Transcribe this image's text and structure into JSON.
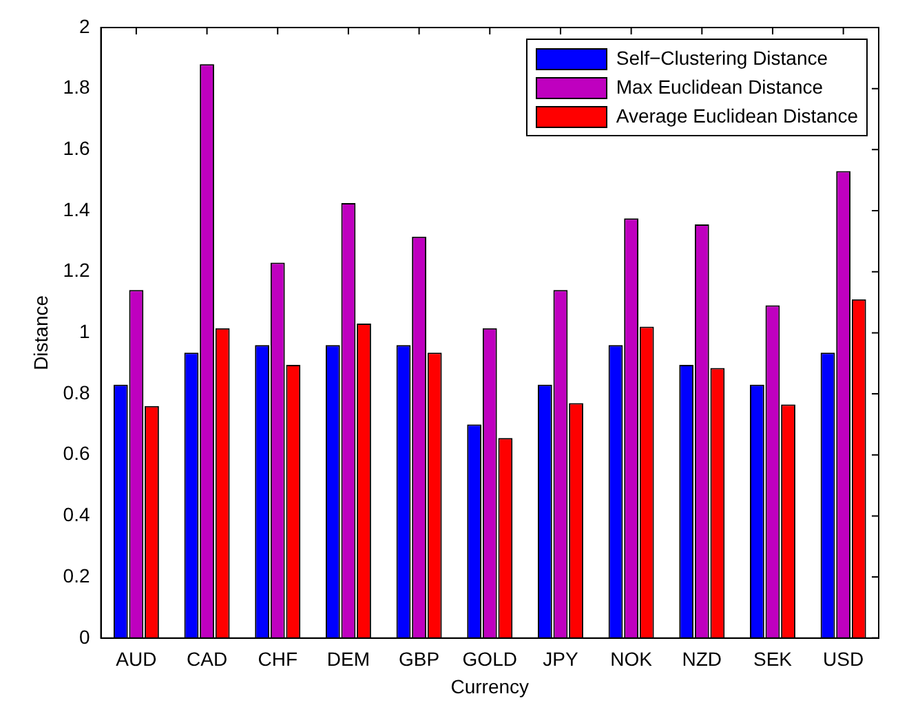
{
  "chart_data": {
    "type": "bar",
    "xlabel": "Currency",
    "ylabel": "Distance",
    "categories": [
      "AUD",
      "CAD",
      "CHF",
      "DEM",
      "GBP",
      "GOLD",
      "JPY",
      "NOK",
      "NZD",
      "SEK",
      "USD"
    ],
    "series": [
      {
        "name": "Self−Clustering Distance",
        "color": "#0000ff",
        "values": [
          0.83,
          0.935,
          0.96,
          0.96,
          0.96,
          0.7,
          0.83,
          0.96,
          0.895,
          0.83,
          0.935
        ]
      },
      {
        "name": "Max Euclidean Distance",
        "color": "#bf00bf",
        "values": [
          1.14,
          1.88,
          1.23,
          1.425,
          1.315,
          1.015,
          1.14,
          1.375,
          1.355,
          1.09,
          1.53
        ]
      },
      {
        "name": "Average Euclidean Distance",
        "color": "#ff0000",
        "values": [
          0.76,
          1.015,
          0.895,
          1.03,
          0.935,
          0.655,
          0.77,
          1.02,
          0.885,
          0.765,
          1.11
        ]
      }
    ],
    "ylim": [
      0,
      2
    ],
    "yticks": [
      0,
      0.2,
      0.4,
      0.6,
      0.8,
      1,
      1.2,
      1.4,
      1.6,
      1.8,
      2
    ],
    "grid": false,
    "legend": "top right"
  }
}
